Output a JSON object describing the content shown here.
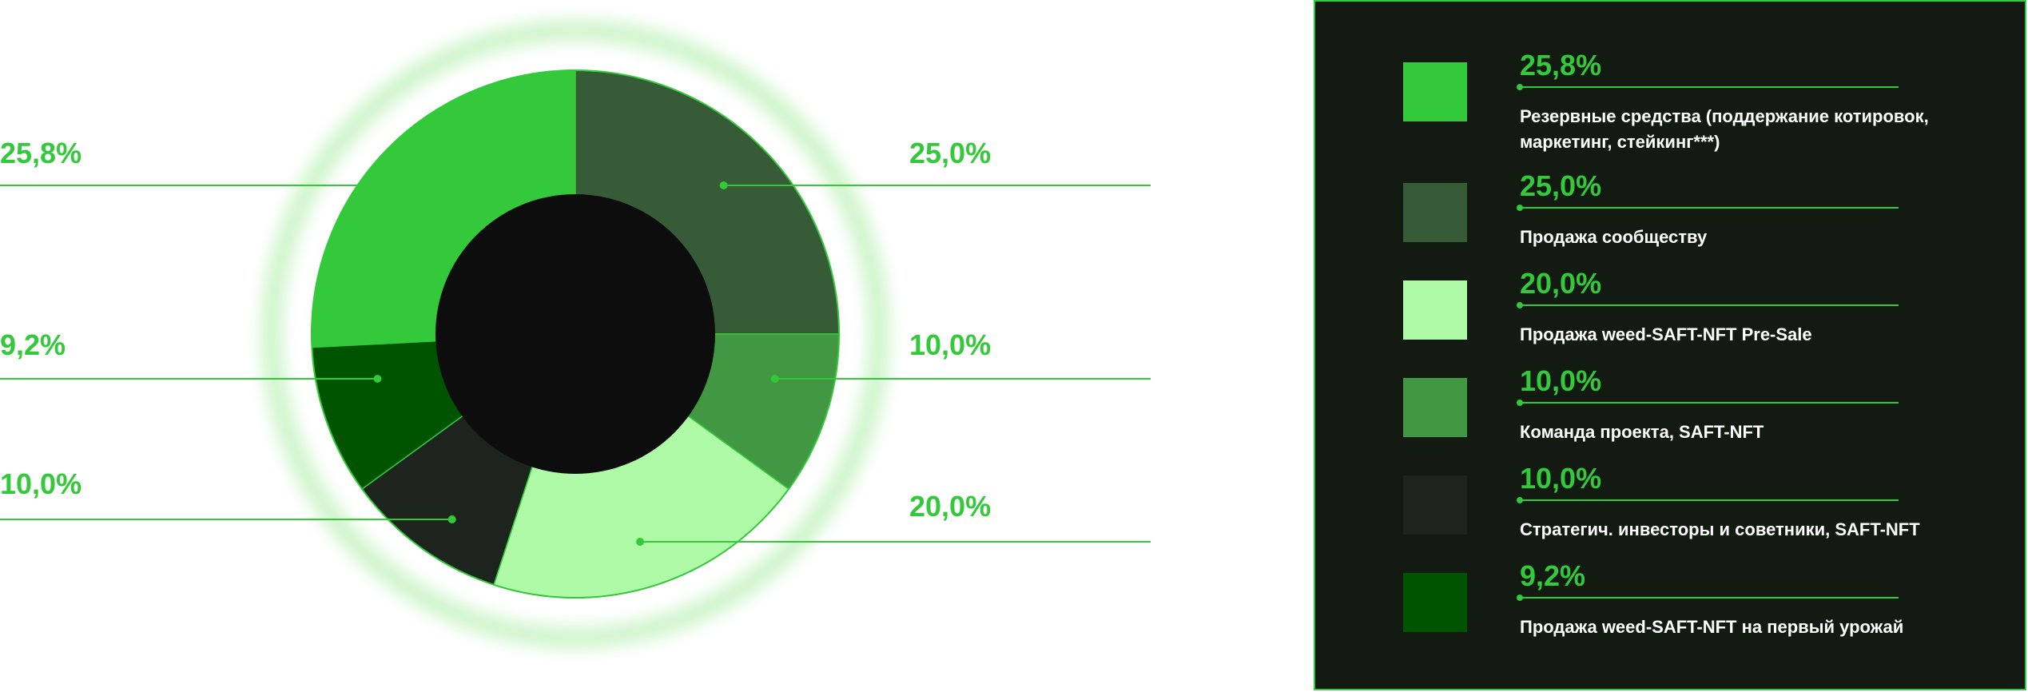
{
  "chart_data": {
    "type": "pie",
    "variant": "donut",
    "slices": [
      {
        "label": "Резервные средства (поддержание котировок, маркетинг, стейкинг***)",
        "value": 25.8,
        "value_label": "25,8%",
        "color": "#33c93a"
      },
      {
        "label": "Продажа сообществу",
        "value": 25.0,
        "value_label": "25,0%",
        "color": "#375a37"
      },
      {
        "label": "Команда проекта, SAFT-NFT",
        "value": 10.0,
        "value_label": "10,0%",
        "color": "#429842"
      },
      {
        "label": "Продажа weed-SAFT-NFT Pre-Sale",
        "value": 20.0,
        "value_label": "20,0%",
        "color": "#aefaa6"
      },
      {
        "label": "Стратегич. инвесторы и советники, SAFT-NFT",
        "value": 10.0,
        "value_label": "10,0%",
        "color": "#1d241d"
      },
      {
        "label": "Продажа weed-SAFT-NFT на первый урожай",
        "value": 9.2,
        "value_label": "9,2%",
        "color": "#005400"
      }
    ],
    "legend_placement": "right",
    "legend_order": [
      0,
      1,
      3,
      2,
      4,
      5
    ]
  },
  "colors": {
    "accent": "#33c93a",
    "panel_bg": "#121a12",
    "donut_hole": "#0d0d0d"
  }
}
